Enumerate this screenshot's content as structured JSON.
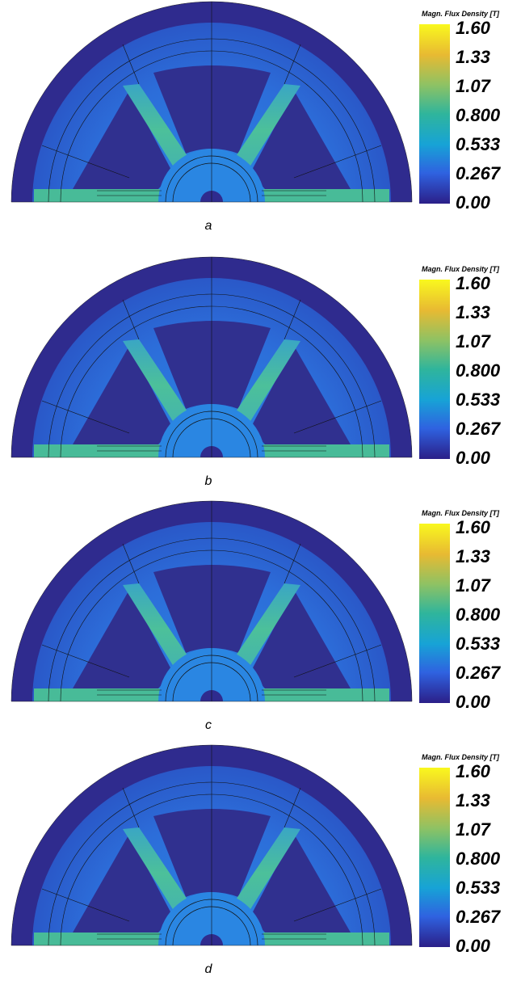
{
  "panels": [
    {
      "label": "a",
      "colorbar": {
        "title": "Magn. Flux Density [T]",
        "ticks": [
          "1.60",
          "1.33",
          "1.07",
          "0.800",
          "0.533",
          "0.267",
          "0.00"
        ]
      }
    },
    {
      "label": "b",
      "colorbar": {
        "title": "Magn. Flux Density [T]",
        "ticks": [
          "1.60",
          "1.33",
          "1.07",
          "0.800",
          "0.533",
          "0.267",
          "0.00"
        ]
      }
    },
    {
      "label": "c",
      "colorbar": {
        "title": "Magn. Flux Density [T]",
        "ticks": [
          "1.60",
          "1.33",
          "1.07",
          "0.800",
          "0.533",
          "0.267",
          "0.00"
        ]
      }
    },
    {
      "label": "d",
      "colorbar": {
        "title": "Magn. Flux Density [T]",
        "ticks": [
          "1.60",
          "1.33",
          "1.07",
          "0.800",
          "0.533",
          "0.267",
          "0.00"
        ]
      }
    }
  ]
}
